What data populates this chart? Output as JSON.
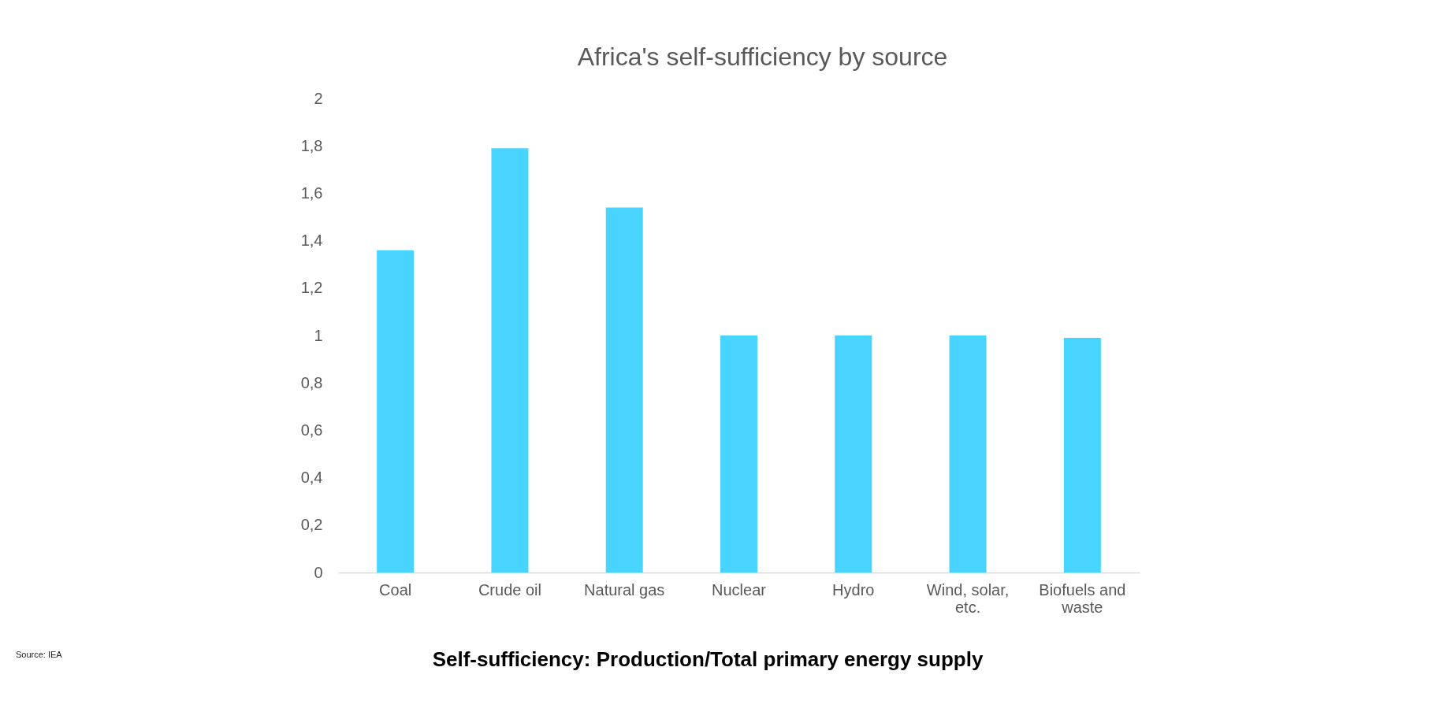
{
  "chart_data": {
    "type": "bar",
    "title": "Africa's self-sufficiency by source",
    "categories": [
      "Coal",
      "Crude oil",
      "Natural gas",
      "Nuclear",
      "Hydro",
      "Wind, solar, etc.",
      "Biofuels and waste"
    ],
    "values": [
      1.36,
      1.79,
      1.54,
      1.0,
      1.0,
      1.0,
      0.99
    ],
    "color": "#48d4ff",
    "ylim": [
      0,
      2
    ],
    "yticks": [
      0,
      {
        "value": 0.2,
        "label": "0,2"
      },
      {
        "value": 0.4,
        "label": "0,4"
      },
      {
        "value": 0.6,
        "label": "0,6"
      },
      {
        "value": 0.8,
        "label": "0,8"
      },
      1,
      {
        "value": 1.2,
        "label": "1,2"
      },
      {
        "value": 1.4,
        "label": "1,4"
      },
      {
        "value": 1.6,
        "label": "1,6"
      },
      {
        "value": 1.8,
        "label": "1,8"
      },
      2
    ],
    "grid": false,
    "annotations": [
      "Source: IEA",
      "Self-sufficiency: Production/Total primary energy supply"
    ]
  }
}
